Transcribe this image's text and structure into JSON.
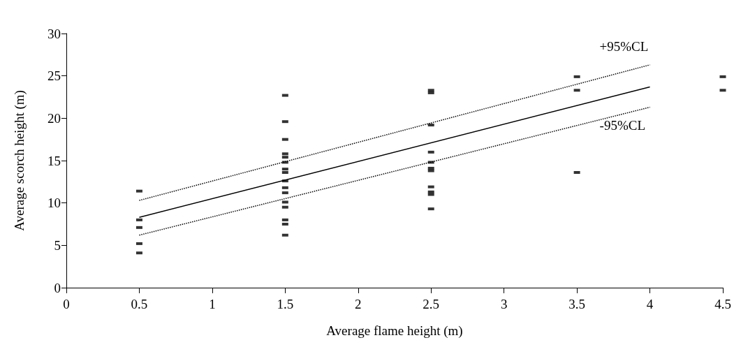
{
  "chart_data": {
    "type": "scatter",
    "xlabel": "Average flame height (m)",
    "ylabel": "Average scorch height (m)",
    "xlim": [
      0,
      4.5
    ],
    "xticks": [
      0,
      0.5,
      1,
      1.5,
      2,
      2.5,
      3,
      3.5,
      4,
      4.5
    ],
    "ylim": [
      0,
      30
    ],
    "yticks": [
      0,
      5,
      10,
      15,
      20,
      25,
      30
    ],
    "grid": false,
    "series": [
      {
        "color": "#000000",
        "marker": "square",
        "x": [
          0.5,
          0.5,
          0.5,
          0.5,
          0.5,
          1.5,
          1.5,
          1.5,
          1.5,
          1.5,
          1.5,
          1.5,
          1.5,
          1.5,
          1.5,
          1.5,
          1.5,
          1.5,
          1.5,
          1.5,
          1.5,
          2.5,
          2.5,
          2.5,
          2.5,
          2.5,
          2.5,
          2.5,
          2.5,
          2.5,
          2.5,
          2.5,
          3.5,
          3.5,
          3.5,
          4.5,
          4.5
        ],
        "values": [
          11.4,
          8.0,
          7.1,
          5.2,
          4.1,
          22.7,
          19.6,
          17.5,
          15.8,
          15.4,
          14.8,
          14.0,
          13.6,
          12.6,
          11.8,
          11.2,
          10.1,
          9.5,
          8.0,
          7.5,
          6.2,
          23.3,
          23.0,
          19.2,
          16.0,
          14.8,
          14.1,
          13.8,
          11.9,
          11.3,
          11.0,
          9.3,
          24.9,
          23.3,
          13.6,
          24.9,
          23.3
        ]
      },
      {
        "type": "line",
        "color": "#000000",
        "marker": "none",
        "line_style": "solid",
        "x": [
          0.5,
          4
        ],
        "values": [
          8.3,
          23.7
        ]
      },
      {
        "type": "line",
        "name": "+95%CL",
        "color": "#000000",
        "marker": "none",
        "line_style": "dotted",
        "x": [
          0.5,
          4
        ],
        "values": [
          10.3,
          26.3
        ]
      },
      {
        "type": "line",
        "name": "-95%CL",
        "color": "#000000",
        "marker": "none",
        "line_style": "dotted",
        "x": [
          0.5,
          4
        ],
        "values": [
          6.2,
          21.3
        ]
      }
    ]
  }
}
